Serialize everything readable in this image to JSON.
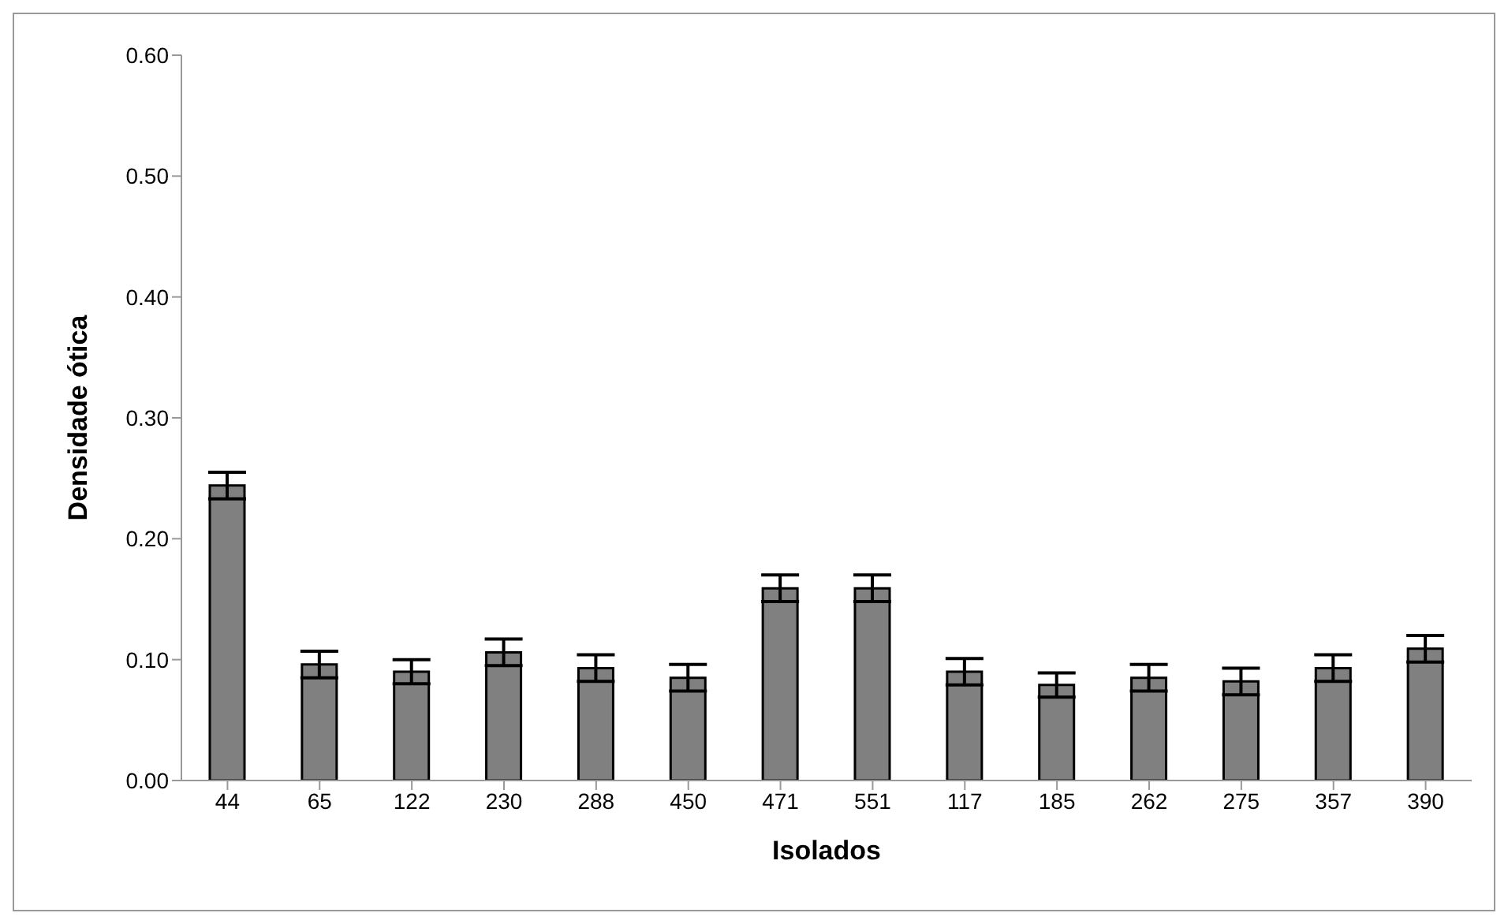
{
  "chart_data": {
    "type": "bar",
    "xlabel": "Isolados",
    "ylabel": "Densidade ótica",
    "categories": [
      "44",
      "65",
      "122",
      "230",
      "288",
      "450",
      "471",
      "551",
      "117",
      "185",
      "262",
      "275",
      "357",
      "390"
    ],
    "values": [
      0.244,
      0.096,
      0.09,
      0.106,
      0.093,
      0.085,
      0.159,
      0.159,
      0.09,
      0.079,
      0.085,
      0.082,
      0.093,
      0.109
    ],
    "errors": [
      0.011,
      0.011,
      0.01,
      0.011,
      0.011,
      0.011,
      0.011,
      0.011,
      0.011,
      0.01,
      0.011,
      0.011,
      0.011,
      0.011
    ],
    "color": "#808080",
    "ylim": [
      0,
      0.6
    ],
    "yticks": [
      {
        "value": 0,
        "label": "0.00"
      },
      {
        "value": 0.1,
        "label": "0.10"
      },
      {
        "value": 0.2,
        "label": "0.20"
      },
      {
        "value": 0.3,
        "label": "0.30"
      },
      {
        "value": 0.4,
        "label": "0.40"
      },
      {
        "value": 0.5,
        "label": "0.50"
      },
      {
        "value": 0.6,
        "label": "0.60"
      }
    ],
    "grid": false,
    "legend": false
  }
}
